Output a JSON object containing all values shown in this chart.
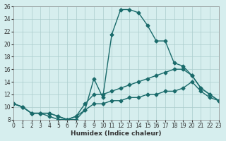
{
  "xlabel": "Humidex (Indice chaleur)",
  "ylabel": "",
  "xlim": [
    0,
    23
  ],
  "ylim": [
    8,
    26
  ],
  "yticks": [
    8,
    10,
    12,
    14,
    16,
    18,
    20,
    22,
    24,
    26
  ],
  "xticks": [
    0,
    1,
    2,
    3,
    4,
    5,
    6,
    7,
    8,
    9,
    10,
    11,
    12,
    13,
    14,
    15,
    16,
    17,
    18,
    19,
    20,
    21,
    22,
    23
  ],
  "bg_color": "#d6eeee",
  "line_color": "#1a6b6b",
  "grid_color": "#aacccc",
  "line1": {
    "x": [
      0,
      1,
      2,
      3,
      4,
      5,
      6,
      7,
      8,
      9,
      10,
      11,
      12,
      13,
      14,
      15,
      16,
      17,
      18,
      19,
      20,
      21,
      22,
      23
    ],
    "y": [
      10.5,
      10.0,
      9.0,
      9.0,
      8.5,
      8.0,
      8.0,
      8.0,
      9.5,
      14.5,
      11.5,
      21.5,
      25.5,
      25.5,
      25.0,
      23.0,
      20.5,
      20.5,
      17.0,
      16.5,
      15.0,
      13.0,
      12.0,
      11.0
    ]
  },
  "line2": {
    "x": [
      0,
      1,
      2,
      3,
      4,
      5,
      6,
      7,
      8,
      9,
      10,
      11,
      12,
      13,
      14,
      15,
      16,
      17,
      18,
      19,
      20,
      21,
      22,
      23
    ],
    "y": [
      10.5,
      10.0,
      9.0,
      9.0,
      9.0,
      8.5,
      8.0,
      8.5,
      10.5,
      12.0,
      12.0,
      12.5,
      13.0,
      13.5,
      14.0,
      14.5,
      15.0,
      15.5,
      16.0,
      16.0,
      15.0,
      13.0,
      12.0,
      11.0
    ]
  },
  "line3": {
    "x": [
      0,
      1,
      2,
      3,
      4,
      5,
      6,
      7,
      8,
      9,
      10,
      11,
      12,
      13,
      14,
      15,
      16,
      17,
      18,
      19,
      20,
      21,
      22,
      23
    ],
    "y": [
      10.5,
      10.0,
      9.0,
      9.0,
      9.0,
      8.5,
      8.0,
      8.5,
      9.5,
      10.5,
      10.5,
      11.0,
      11.0,
      11.5,
      11.5,
      12.0,
      12.0,
      12.5,
      12.5,
      13.0,
      14.0,
      12.5,
      11.5,
      11.0
    ]
  }
}
